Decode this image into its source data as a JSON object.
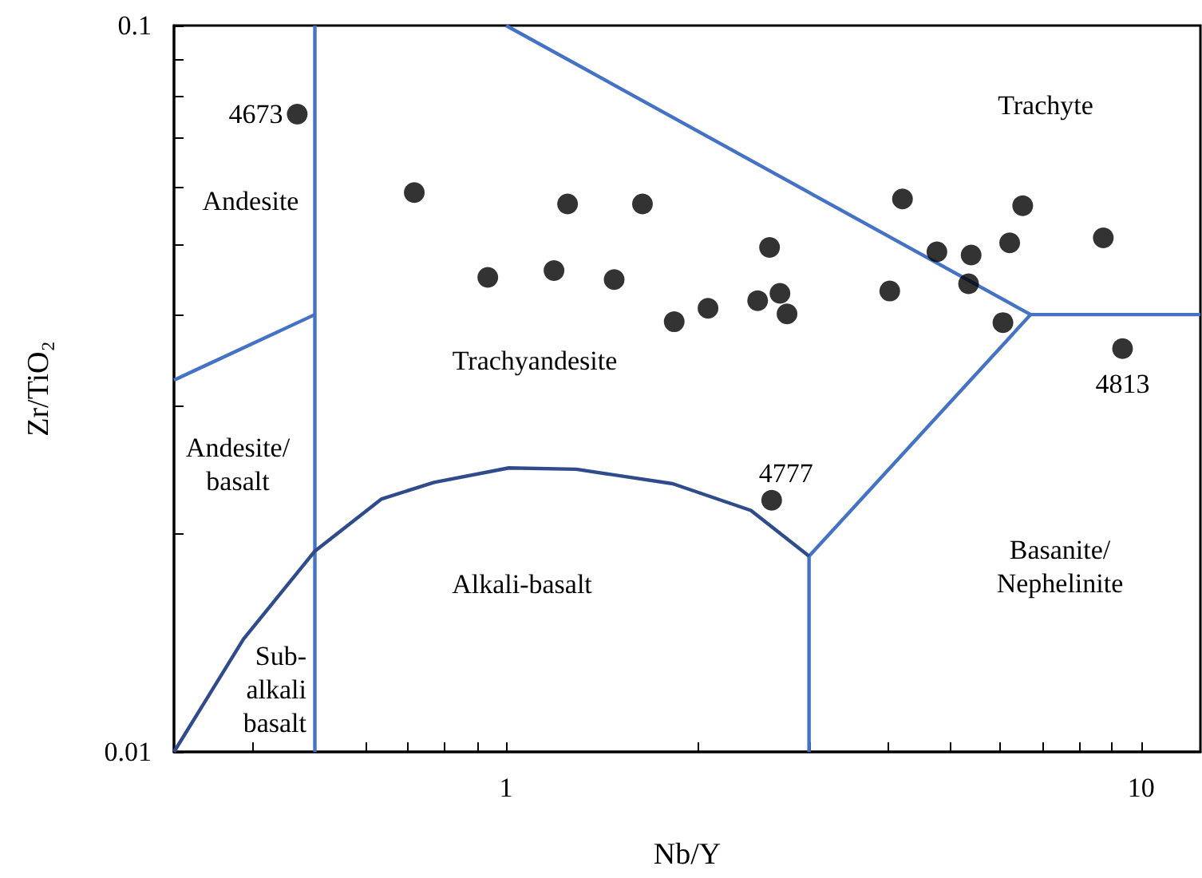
{
  "chart_data": {
    "type": "scatter",
    "xlabel": "Nb/Y",
    "ylabel": "Zr/TiO₂",
    "log": "xy",
    "grid": false,
    "xlim": [
      0.3,
      12.4
    ],
    "ylim": [
      0.01,
      0.1
    ],
    "xticks": [
      {
        "value": 0.4,
        "label": null
      },
      {
        "value": 0.5,
        "label": null
      },
      {
        "value": 0.6,
        "label": null
      },
      {
        "value": 0.7,
        "label": null
      },
      {
        "value": 0.8,
        "label": null
      },
      {
        "value": 0.9,
        "label": null
      },
      1,
      {
        "value": 2,
        "label": null
      },
      {
        "value": 3,
        "label": null
      },
      {
        "value": 4,
        "label": null
      },
      {
        "value": 5,
        "label": null
      },
      {
        "value": 6,
        "label": null
      },
      {
        "value": 7,
        "label": null
      },
      {
        "value": 8,
        "label": null
      },
      {
        "value": 9,
        "label": null
      },
      10
    ],
    "yticks": [
      0.01,
      {
        "value": 0.02,
        "label": null
      },
      {
        "value": 0.03,
        "label": null
      },
      {
        "value": 0.04,
        "label": null
      },
      {
        "value": 0.05,
        "label": null
      },
      {
        "value": 0.06,
        "label": null
      },
      {
        "value": 0.07,
        "label": null
      },
      {
        "value": 0.08,
        "label": null
      },
      {
        "value": 0.09,
        "label": null
      },
      0.1
    ],
    "series": [
      {
        "type": "line",
        "color": "#4472c4",
        "x": [
          0.5,
          0.5
        ],
        "values": [
          0.01,
          0.1
        ]
      },
      {
        "type": "line",
        "color": "#4472c4",
        "x": [
          0.3,
          0.5
        ],
        "values": [
          0.0325,
          0.04
        ]
      },
      {
        "type": "line",
        "color": "#4472c4",
        "x": [
          1,
          6.7,
          12.4
        ],
        "values": [
          0.1,
          0.04,
          0.04
        ]
      },
      {
        "type": "line",
        "color": "#4472c4",
        "x": [
          6.7,
          3,
          3
        ],
        "values": [
          0.04,
          0.0186,
          0.01
        ]
      },
      {
        "type": "line",
        "color": "#2f4b8c",
        "x": [
          0.3,
          0.386,
          0.5,
          0.637,
          0.77,
          1.01,
          1.29,
          1.83,
          2.43,
          3
        ],
        "values": [
          0.01,
          0.0143,
          0.0189,
          0.0223,
          0.0235,
          0.0246,
          0.0245,
          0.0234,
          0.0215,
          0.0186
        ]
      },
      {
        "marker": "circle",
        "color": "#000000",
        "x": [
          0.469,
          0.717,
          1.25,
          1.64,
          0.936,
          1.19,
          1.48,
          1.84,
          2.08,
          2.6,
          2.49,
          2.7,
          2.77,
          4.02,
          4.21,
          4.77,
          5.4,
          5.35,
          6.06,
          6.21,
          6.51,
          8.72,
          9.35,
          2.62
        ],
        "values": [
          0.0755,
          0.0589,
          0.0568,
          0.0568,
          0.045,
          0.046,
          0.0447,
          0.0391,
          0.0408,
          0.0495,
          0.0418,
          0.0428,
          0.0401,
          0.0431,
          0.0577,
          0.0488,
          0.0483,
          0.0441,
          0.039,
          0.0502,
          0.0565,
          0.051,
          0.0359,
          0.0222
        ]
      }
    ],
    "annotations": [
      {
        "text": "4673",
        "x": 0.469,
        "y": 0.0755
      },
      {
        "text": "4813",
        "x": 9.35,
        "y": 0.0359
      },
      {
        "text": "4777",
        "x": 2.62,
        "y": 0.0222
      },
      "Trachyte",
      "Andesite",
      "Trachyandesite",
      "Andesite/\nbasalt",
      "Alkali-basalt",
      "Basanite/\nNephelinite",
      "Sub-\nalkali\nbasalt"
    ]
  }
}
